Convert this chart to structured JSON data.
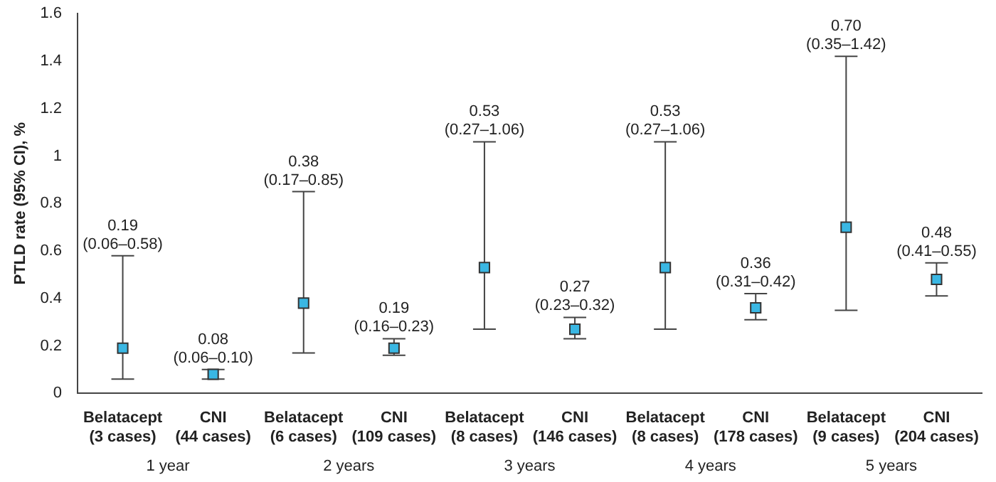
{
  "chart_data": {
    "type": "scatter",
    "ylabel": "PTLD rate (95% CI), %",
    "categories": [
      "Belatacept\n(3 cases)",
      "CNI\n(44 cases)",
      "Belatacept\n(6 cases)",
      "CNI\n(109 cases)",
      "Belatacept\n(8 cases)",
      "CNI\n(146 cases)",
      "Belatacept\n(8 cases)",
      "CNI\n(178 cases)",
      "Belatacept\n(9 cases)",
      "CNI\n(204 cases)"
    ],
    "series": [
      {
        "color": "#3ab7e3",
        "values": [
          0.19,
          0.08,
          0.38,
          0.19,
          0.53,
          0.27,
          0.53,
          0.36,
          0.7,
          0.48
        ],
        "errors": [
          [
            0.06,
            0.58
          ],
          [
            0.06,
            0.1
          ],
          [
            0.17,
            0.85
          ],
          [
            0.16,
            0.23
          ],
          [
            0.27,
            1.06
          ],
          [
            0.23,
            0.32
          ],
          [
            0.27,
            1.06
          ],
          [
            0.31,
            0.42
          ],
          [
            0.35,
            1.42
          ],
          [
            0.41,
            0.55
          ]
        ]
      }
    ],
    "ylim": [
      0,
      1.6
    ],
    "yticks": [
      0,
      0.2,
      0.4,
      0.6,
      0.8,
      1,
      1.2,
      1.4,
      1.6
    ],
    "annotations": [
      "1 year",
      "2 years",
      "3 years",
      "4 years",
      "5 years",
      {
        "text": "0.19\n(0.06–0.58)",
        "x": "Belatacept\n(3 cases)",
        "y": 0.58
      },
      {
        "text": "0.08\n(0.06–0.10)",
        "x": "CNI\n(44 cases)",
        "y": 0.1
      },
      {
        "text": "0.38\n(0.17–0.85)",
        "x": "Belatacept\n(6 cases)",
        "y": 0.85
      },
      {
        "text": "0.19\n(0.16–0.23)",
        "x": "CNI\n(109 cases)",
        "y": 0.23
      },
      {
        "text": "0.53\n(0.27–1.06)",
        "x": "Belatacept\n(8 cases)",
        "y": 1.06
      },
      {
        "text": "0.27\n(0.23–0.32)",
        "x": "CNI\n(146 cases)",
        "y": 0.32
      },
      {
        "text": "0.53\n(0.27–1.06)",
        "y": 1.06
      },
      {
        "text": "0.36\n(0.31–0.42)",
        "x": "CNI\n(178 cases)",
        "y": 0.42
      },
      {
        "text": "0.70\n(0.35–1.42)",
        "x": "Belatacept\n(9 cases)",
        "y": 1.42
      },
      {
        "text": "0.48\n(0.41–0.55)",
        "x": "CNI\n(204 cases)",
        "y": 0.55
      }
    ],
    "marker": "square",
    "grid": false,
    "legend": false
  }
}
